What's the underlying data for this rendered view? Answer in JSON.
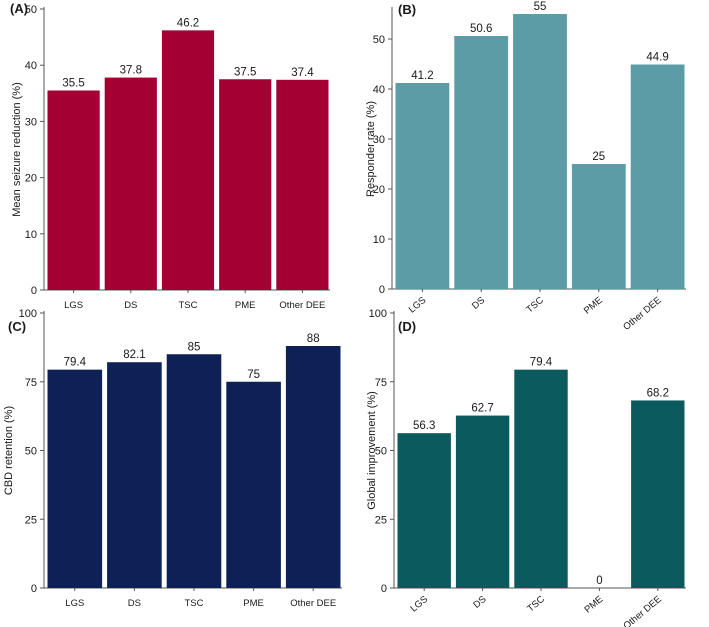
{
  "chart_data": [
    {
      "type": "bar",
      "panel": "(A)",
      "ylabel": "Mean seizure reduction (%)",
      "categories": [
        "LGS",
        "DS",
        "TSC",
        "PME",
        "Other DEE"
      ],
      "values": [
        35.5,
        37.8,
        46.2,
        37.5,
        37.4
      ],
      "labels": [
        "35.5",
        "37.8",
        "46.2",
        "37.5",
        "37.4"
      ],
      "ylim": [
        0,
        50
      ],
      "yticks": [
        0,
        10,
        20,
        30,
        40,
        50
      ],
      "color": "#A50034",
      "rotate_categories": false
    },
    {
      "type": "bar",
      "panel": "(B)",
      "ylabel": "Responder rate (%)",
      "categories": [
        "LGS",
        "DS",
        "TSC",
        "PME",
        "Other DEE"
      ],
      "values": [
        41.2,
        50.6,
        55,
        25,
        44.9
      ],
      "labels": [
        "41.2",
        "50.6",
        "55",
        "25",
        "44.9"
      ],
      "ylim": [
        0,
        56
      ],
      "yticks": [
        0,
        10,
        20,
        30,
        40,
        50
      ],
      "color": "#5B9CA6",
      "rotate_categories": true
    },
    {
      "type": "bar",
      "panel": "(C)",
      "ylabel": "CBD retention (%)",
      "categories": [
        "LGS",
        "DS",
        "TSC",
        "PME",
        "Other DEE"
      ],
      "values": [
        79.4,
        82.1,
        85,
        75,
        88
      ],
      "labels": [
        "79.4",
        "82.1",
        "85",
        "75",
        "88"
      ],
      "ylim": [
        0,
        100
      ],
      "yticks": [
        0,
        25,
        50,
        75,
        100
      ],
      "color": "#0D2156",
      "rotate_categories": false
    },
    {
      "type": "bar",
      "panel": "(D)",
      "ylabel": "Global improvement (%)",
      "categories": [
        "LGS",
        "DS",
        "TSC",
        "PME",
        "Other DEE"
      ],
      "values": [
        56.3,
        62.7,
        79.4,
        0,
        68.2
      ],
      "labels": [
        "56.3",
        "62.7",
        "79.4",
        "0",
        "68.2"
      ],
      "ylim": [
        0,
        100
      ],
      "yticks": [
        0,
        25,
        50,
        75,
        100
      ],
      "color": "#0A5A5E",
      "rotate_categories": true
    }
  ]
}
